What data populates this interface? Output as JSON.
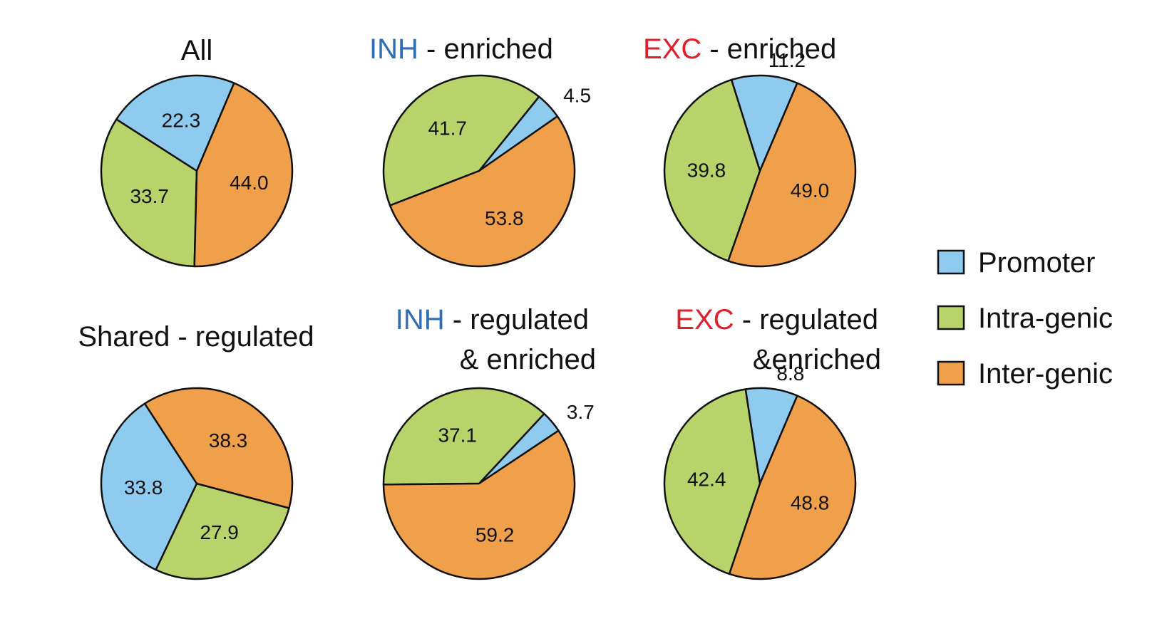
{
  "colors": {
    "promoter": "#8ecbef",
    "intragenic": "#b9d36b",
    "intergenic": "#f0a04b",
    "inh": "#2f6db5",
    "exc": "#e0202a",
    "outline": "#111111"
  },
  "legend": [
    {
      "key": "promoter",
      "label": "Promoter"
    },
    {
      "key": "intragenic",
      "label": "Intra-genic"
    },
    {
      "key": "intergenic",
      "label": "Inter-genic"
    }
  ],
  "chart_data": [
    {
      "type": "pie",
      "title": "All",
      "categories": [
        "Promoter",
        "Intra-genic",
        "Inter-genic"
      ],
      "values": [
        22.3,
        33.7,
        44.0
      ]
    },
    {
      "type": "pie",
      "title": "INH - enriched",
      "title_prefix": "INH",
      "title_rest": " - enriched",
      "categories": [
        "Promoter",
        "Intra-genic",
        "Inter-genic"
      ],
      "values": [
        4.5,
        41.7,
        53.8
      ]
    },
    {
      "type": "pie",
      "title": "EXC - enriched",
      "title_prefix": "EXC",
      "title_rest": " - enriched",
      "categories": [
        "Promoter",
        "Intra-genic",
        "Inter-genic"
      ],
      "values": [
        11.2,
        39.8,
        49.0
      ]
    },
    {
      "type": "pie",
      "title": "Shared - regulated",
      "categories": [
        "Promoter",
        "Intra-genic",
        "Inter-genic"
      ],
      "values": [
        33.8,
        27.9,
        38.3
      ]
    },
    {
      "type": "pie",
      "title": "INH - regulated & enriched",
      "title_prefix": "INH",
      "title_rest": " - regulated",
      "title_line2": "& enriched",
      "categories": [
        "Promoter",
        "Intra-genic",
        "Inter-genic"
      ],
      "values": [
        3.7,
        37.1,
        59.2
      ]
    },
    {
      "type": "pie",
      "title": "EXC - regulated &enriched",
      "title_prefix": "EXC",
      "title_rest": " - regulated",
      "title_line2": "&enriched",
      "categories": [
        "Promoter",
        "Intra-genic",
        "Inter-genic"
      ],
      "values": [
        8.8,
        42.4,
        48.8
      ]
    }
  ]
}
